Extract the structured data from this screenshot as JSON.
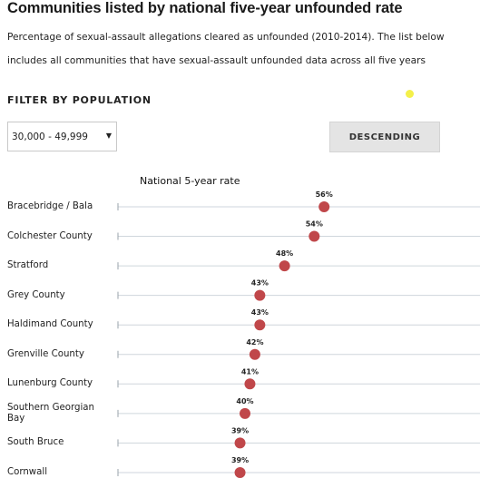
{
  "title": "Communities listed by national five-year unfounded rate",
  "subtitle": "Percentage of sexual-assault allegations cleared as unfounded (2010-2014). The list below includes all communities that have sexual-assault unfounded data across all five years",
  "filter": {
    "label": "FILTER BY POPULATION",
    "selected": "30,000 - 49,999"
  },
  "sort_button": "DESCENDING",
  "colors": {
    "dot": "#c0474a",
    "gridline": "#cfd6dc",
    "label": "#222222"
  },
  "chart_data": {
    "type": "scatter",
    "title": "National 5-year rate",
    "orientation": "horizontal",
    "categories": [
      "Bracebridge / Bala",
      "Colchester County",
      "Stratford",
      "Grey County",
      "Haldimand County",
      "Grenville County",
      "Lunenburg County",
      "Southern Georgian Bay",
      "South Bruce",
      "Cornwall"
    ],
    "series": [
      {
        "values": [
          56,
          54,
          48,
          43,
          43,
          42,
          41,
          40,
          39,
          39
        ]
      }
    ],
    "value_labels": [
      "56%",
      "54%",
      "48%",
      "43%",
      "43%",
      "42%",
      "41%",
      "40%",
      "39%",
      "39%"
    ],
    "xlim": [
      0,
      100
    ],
    "grid": true
  }
}
